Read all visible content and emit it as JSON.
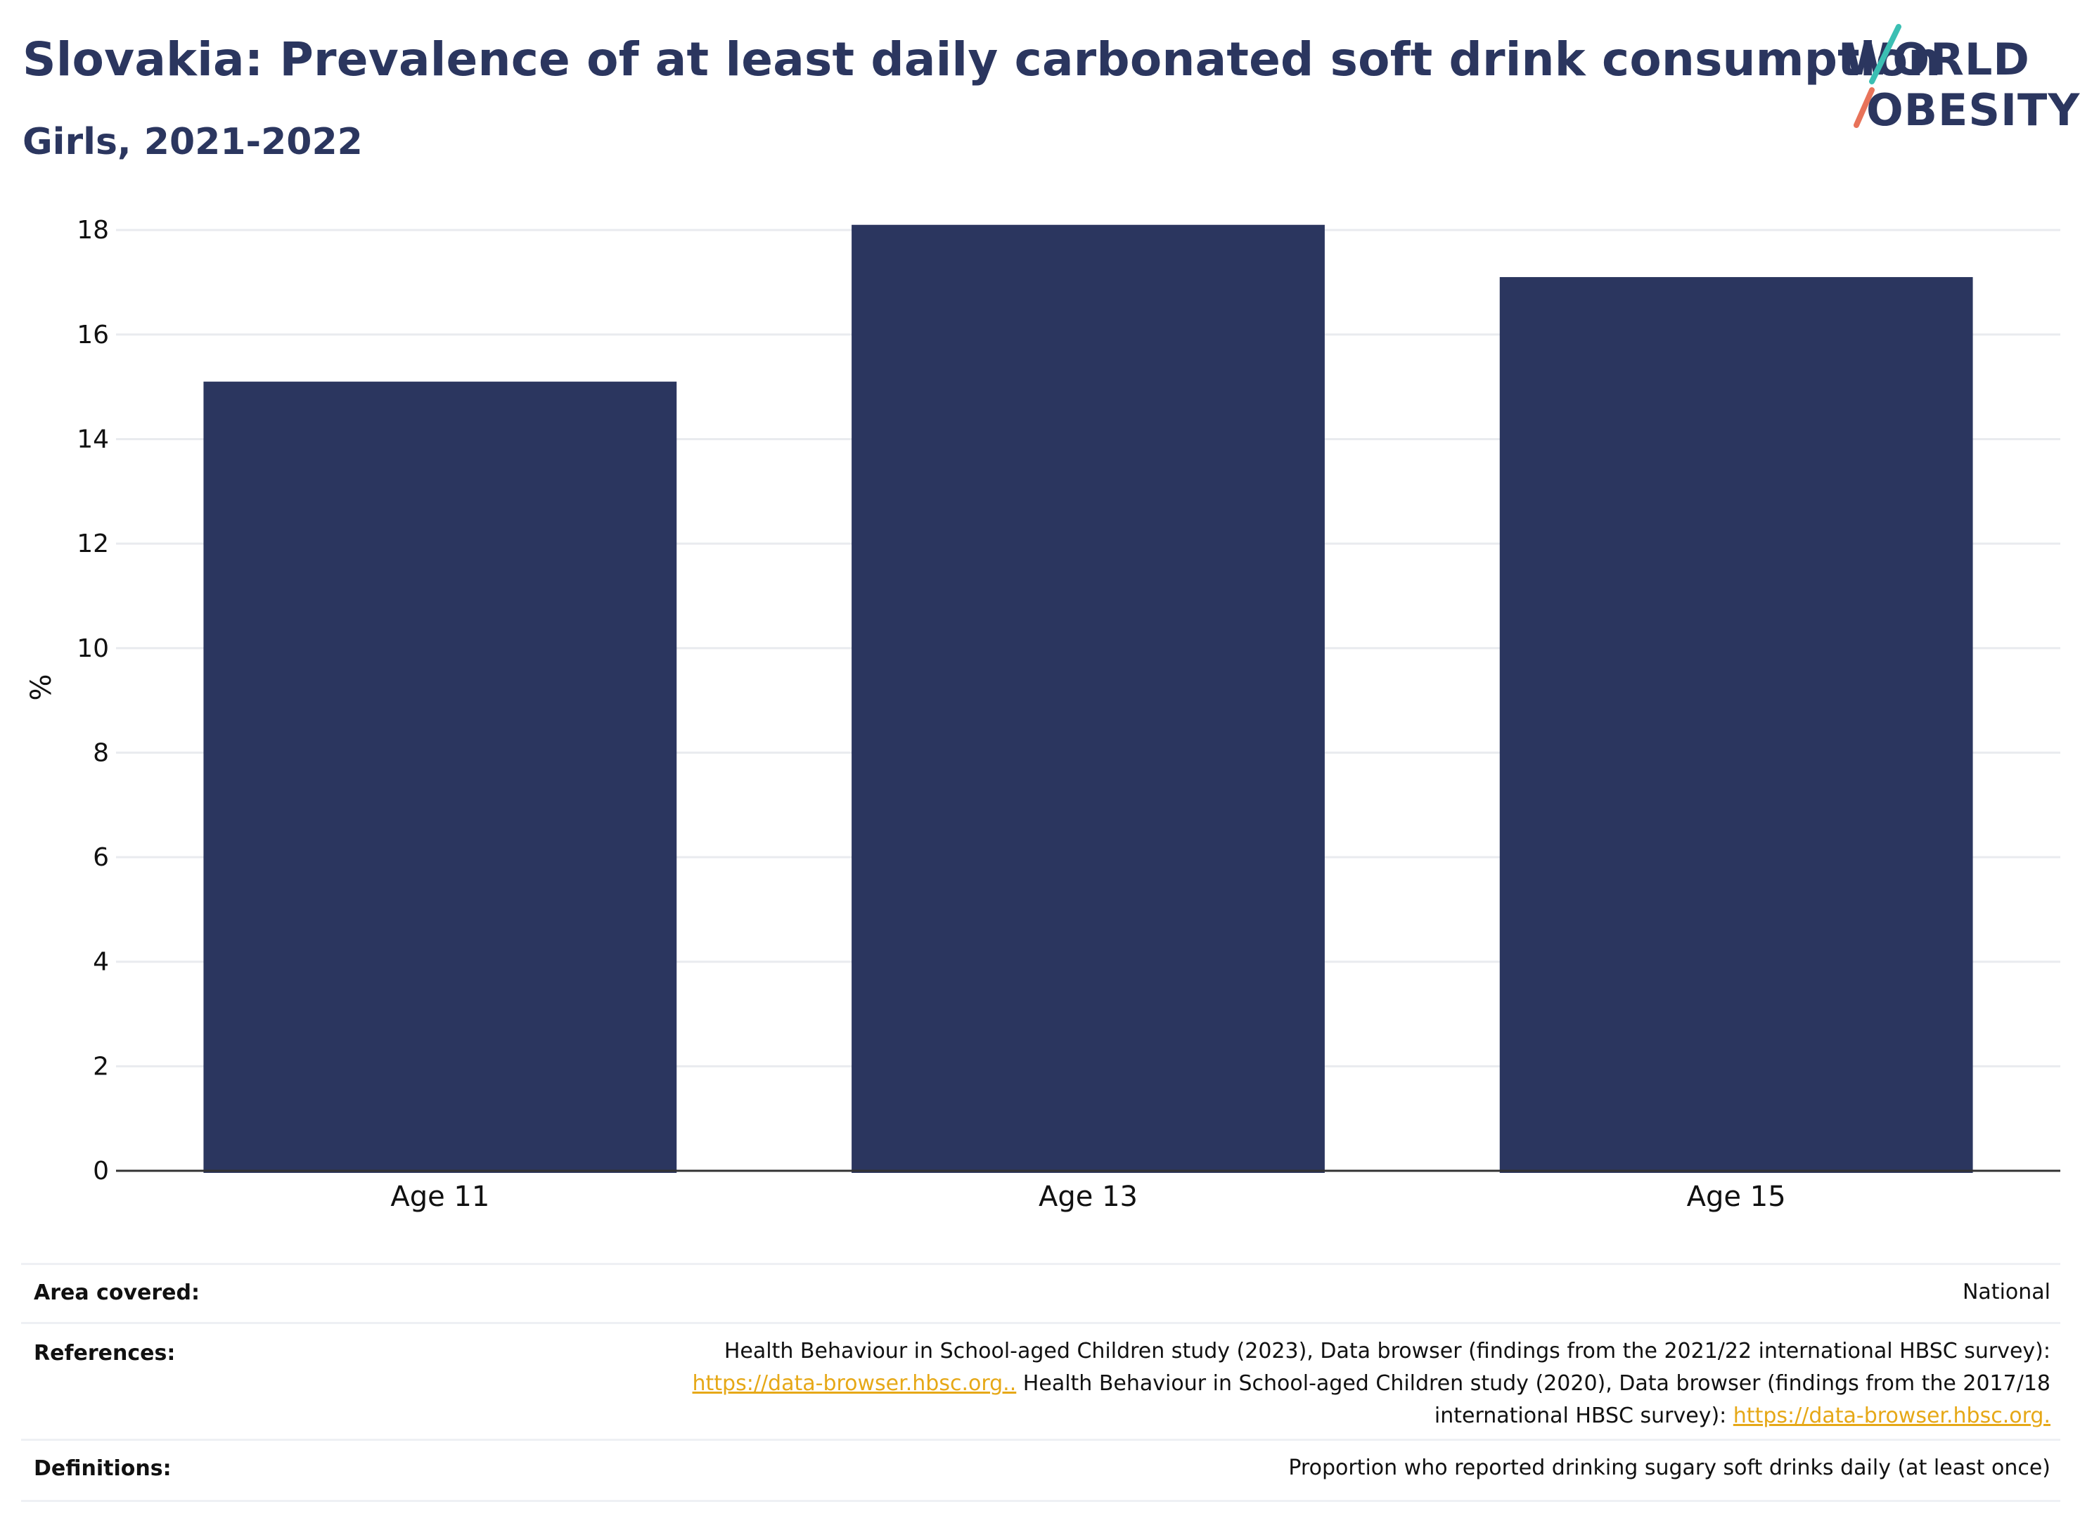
{
  "header": {
    "title": "Slovakia: Prevalence of at least daily carbonated soft drink consumption",
    "subtitle": "Girls, 2021-2022"
  },
  "logo": {
    "line1": "WORLD",
    "line2": "OBESITY"
  },
  "chart_data": {
    "type": "bar",
    "title": "Slovakia: Prevalence of at least daily carbonated soft drink consumption",
    "subtitle": "Girls, 2021-2022",
    "categories": [
      "Age 11",
      "Age 13",
      "Age 15"
    ],
    "values": [
      15.1,
      18.1,
      17.1
    ],
    "xlabel": "",
    "ylabel": "%",
    "ylim": [
      0,
      18.5
    ],
    "yticks": [
      0,
      2,
      4,
      6,
      8,
      10,
      12,
      14,
      16,
      18
    ],
    "grid": true,
    "legend": "none",
    "colors": {
      "bar": "#2b365f",
      "grid": "#e9ebef",
      "axis": "#333333"
    }
  },
  "meta": {
    "area_label": "Area covered:",
    "area_value": "National",
    "references_label": "References:",
    "references_line1": "Health Behaviour in School-aged Children study (2023), Data browser (findings from the 2021/22 international HBSC survey):",
    "references_link1": "https://data-browser.hbsc.org..",
    "references_line2": " Health Behaviour in School-aged Children study (2020), Data browser (findings from the 2017/18",
    "references_line3": "international HBSC survey): ",
    "references_link2": "https://data-browser.hbsc.org.",
    "definitions_label": "Definitions:",
    "definitions_value": "Proportion who reported drinking sugary soft drinks daily (at least once)",
    "link_color": "#e6a817"
  }
}
